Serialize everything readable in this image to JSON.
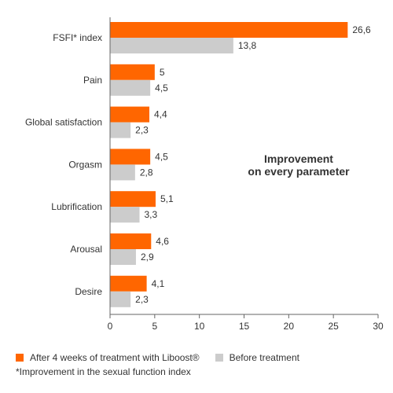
{
  "chart_data": {
    "type": "bar",
    "orientation": "horizontal",
    "categories": [
      "FSFI* index",
      "Pain",
      "Global satisfaction",
      "Orgasm",
      "Lubrification",
      "Arousal",
      "Desire"
    ],
    "series": [
      {
        "name": "After 4 weeks of treatment with Liboost®",
        "color": "#ff6600",
        "values": [
          26.6,
          5,
          4.4,
          4.5,
          5.1,
          4.6,
          4.1
        ],
        "labels": [
          "26,6",
          "5",
          "4,4",
          "4,5",
          "5,1",
          "4,6",
          "4,1"
        ]
      },
      {
        "name": "Before treatment",
        "color": "#cccccc",
        "values": [
          13.8,
          4.5,
          2.3,
          2.8,
          3.3,
          2.9,
          2.3
        ],
        "labels": [
          "13,8",
          "4,5",
          "2,3",
          "2,8",
          "3,3",
          "2,9",
          "2,3"
        ]
      }
    ],
    "xlim": [
      0,
      30
    ],
    "xticks": [
      0,
      5,
      10,
      15,
      20,
      25,
      30
    ],
    "annotation": [
      "Improvement",
      "on every parameter"
    ],
    "footnote": "*Improvement in the sexual function index",
    "legend_position": "bottom",
    "grid": false
  }
}
